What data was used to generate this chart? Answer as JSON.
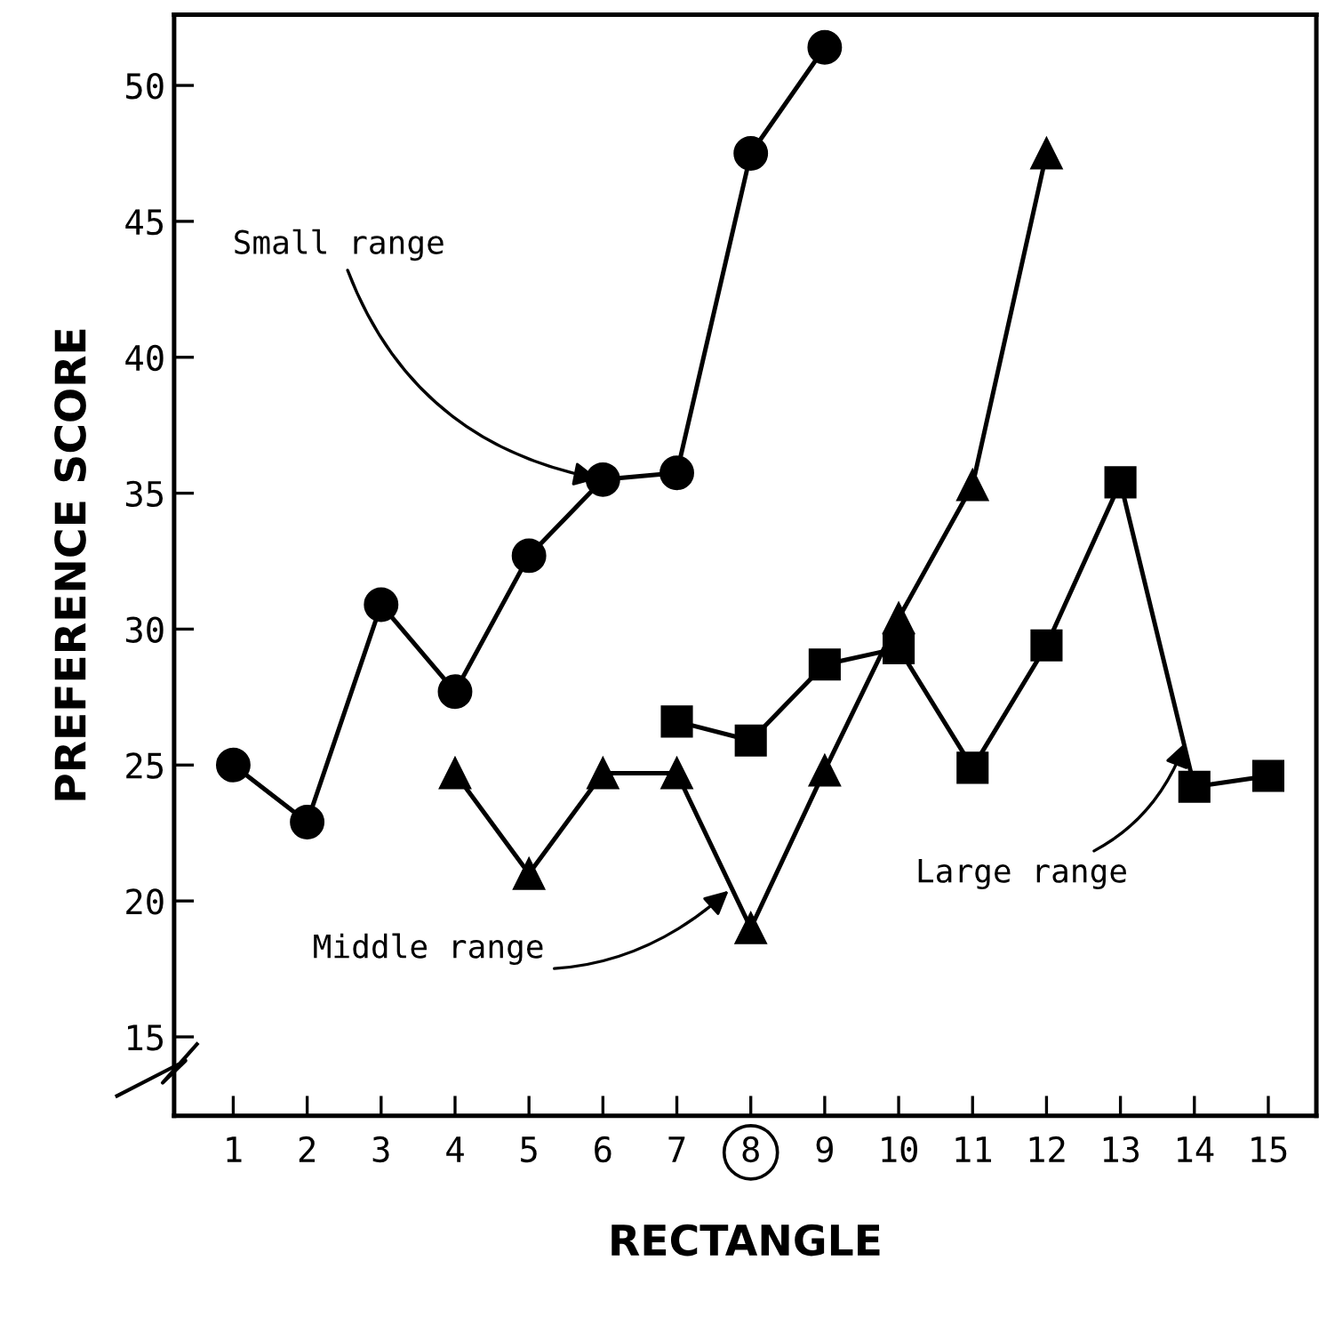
{
  "chart_data": {
    "type": "line",
    "xlabel": "RECTANGLE",
    "ylabel": "PREFERENCE SCORE",
    "xlim": [
      0.2,
      15.65
    ],
    "ylim": [
      12.1,
      52.6
    ],
    "xticks": [
      1,
      2,
      3,
      4,
      5,
      6,
      7,
      8,
      9,
      10,
      11,
      12,
      13,
      14,
      15
    ],
    "yticks": [
      15,
      20,
      25,
      30,
      35,
      40,
      45,
      50
    ],
    "grid": false,
    "legend": false,
    "line_style": "solid",
    "series": [
      {
        "color": "#000000",
        "marker": "circle",
        "x": [
          1,
          2,
          3,
          4,
          5,
          6,
          7,
          8,
          9
        ],
        "values": [
          25.0,
          22.9,
          30.9,
          27.7,
          32.7,
          35.5,
          35.75,
          47.5,
          51.4
        ]
      },
      {
        "color": "#000000",
        "marker": "triangle",
        "x": [
          4,
          5,
          6,
          7,
          8,
          9,
          10,
          11,
          12
        ],
        "values": [
          24.7,
          21.0,
          24.7,
          24.7,
          19.0,
          24.8,
          30.4,
          35.3,
          47.5
        ]
      },
      {
        "color": "#000000",
        "marker": "square",
        "x": [
          7,
          8,
          9,
          10,
          11,
          12,
          13,
          14,
          15
        ],
        "values": [
          26.6,
          25.9,
          28.7,
          29.3,
          24.9,
          29.4,
          35.4,
          24.2,
          24.6
        ]
      }
    ],
    "annotations": [
      {
        "text": "Small range",
        "x": 6,
        "y": 35.5
      },
      {
        "text": "Middle range",
        "x": 7.75,
        "y": 20.5
      },
      {
        "text": "Large range",
        "x": 13.9,
        "y": 26.0
      }
    ]
  }
}
